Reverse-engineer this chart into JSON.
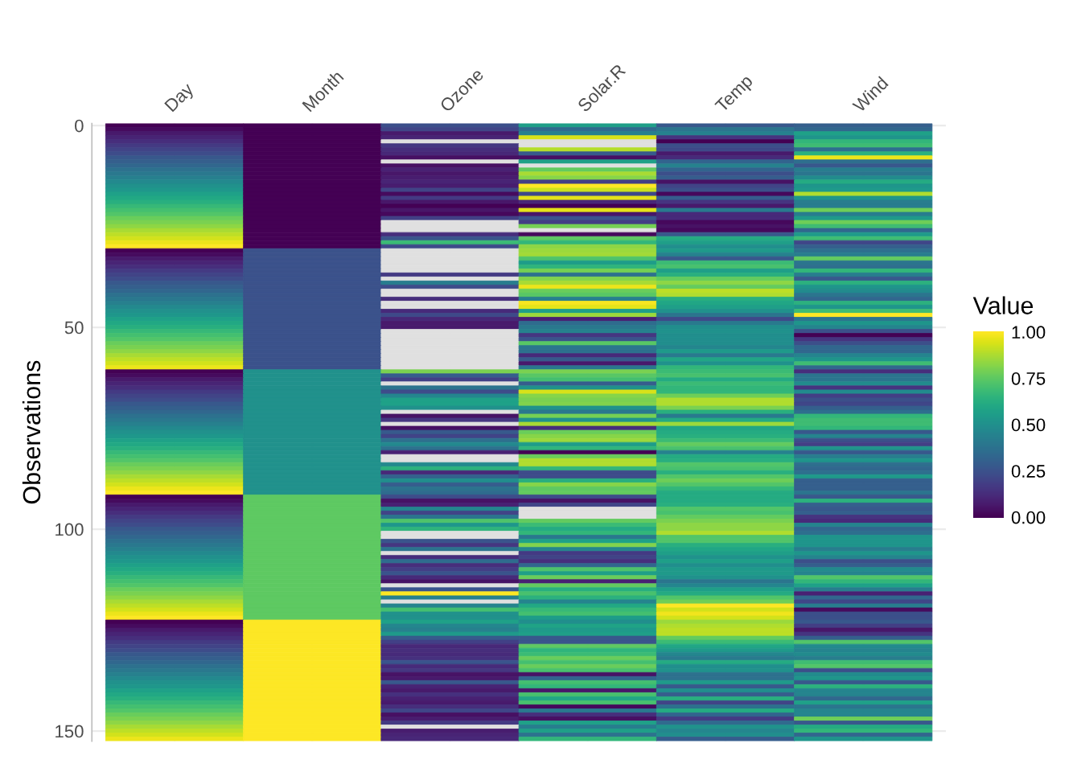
{
  "chart_data": {
    "type": "heatmap",
    "categories": [
      "Day",
      "Month",
      "Ozone",
      "Solar.R",
      "Temp",
      "Wind"
    ],
    "ylabel": "Observations",
    "legend_title": "Value",
    "ylim": [
      152.5,
      -0.5
    ],
    "yticks": [
      0,
      50,
      100,
      150
    ],
    "clim": [
      0,
      1
    ],
    "cticks": [
      {
        "value": 0,
        "label": "0.00"
      },
      {
        "value": 0.25,
        "label": "0.25"
      },
      {
        "value": 0.5,
        "label": "0.50"
      },
      {
        "value": 0.75,
        "label": "0.75"
      },
      {
        "value": 1,
        "label": "1.00"
      }
    ],
    "grid": true,
    "cells": [
      [
        0,
        0,
        0.24,
        0.56,
        0.27,
        0.3
      ],
      [
        0.03,
        0,
        0.21,
        0.34,
        0.39,
        0.33
      ],
      [
        0.07,
        0,
        0.07,
        0.43,
        0.44,
        0.57
      ],
      [
        0.1,
        0,
        0.1,
        0.94,
        0.15,
        0.52
      ],
      [
        0.13,
        0,
        null,
        null,
        0,
        0.66
      ],
      [
        0.17,
        0,
        0.16,
        null,
        0.24,
        0.69
      ],
      [
        0.2,
        0,
        0.13,
        0.89,
        0.22,
        0.36
      ],
      [
        0.23,
        0,
        0.11,
        0.28,
        0.07,
        0.64
      ],
      [
        0.27,
        0,
        0.04,
        0.04,
        0.12,
        0.97
      ],
      [
        0.3,
        0,
        null,
        0.57,
        0.32,
        0.36
      ],
      [
        0.33,
        0,
        0.04,
        null,
        0.44,
        0.27
      ],
      [
        0.37,
        0,
        0.09,
        0.76,
        0.32,
        0.42
      ],
      [
        0.4,
        0,
        0.06,
        0.87,
        0.24,
        0.39
      ],
      [
        0.43,
        0,
        0.08,
        0.82,
        0.29,
        0.48
      ],
      [
        0.47,
        0,
        0.1,
        0.18,
        0.05,
        0.61
      ],
      [
        0.5,
        0,
        0.08,
        1,
        0.2,
        0.52
      ],
      [
        0.53,
        0,
        0.2,
        0.92,
        0.24,
        0.54
      ],
      [
        0.57,
        0,
        0.03,
        0.22,
        0.02,
        0.88
      ],
      [
        0.6,
        0,
        0.17,
        0.96,
        0.29,
        0.52
      ],
      [
        0.63,
        0,
        0.06,
        0.11,
        0.15,
        0.42
      ],
      [
        0.67,
        0,
        0,
        0,
        0.07,
        0.42
      ],
      [
        0.7,
        0,
        0.06,
        0.96,
        0.41,
        0.78
      ],
      [
        0.73,
        0,
        0.02,
        0.06,
        0.12,
        0.42
      ],
      [
        0.77,
        0,
        0.19,
        0.26,
        0.12,
        0.54
      ],
      [
        0.8,
        0,
        null,
        0.18,
        0.02,
        0.78
      ],
      [
        0.83,
        0,
        null,
        0.79,
        0.05,
        0.69
      ],
      [
        0.87,
        0,
        null,
        null,
        0.02,
        0.33
      ],
      [
        0.9,
        0,
        0.13,
        0.02,
        0.27,
        0.54
      ],
      [
        0.93,
        0,
        0.26,
        0.75,
        0.61,
        0.69
      ],
      [
        0.97,
        0,
        0.68,
        0.66,
        0.56,
        0.21
      ],
      [
        1,
        0,
        0.22,
        0.83,
        0.49,
        0.3
      ],
      [
        0,
        0.25,
        null,
        0.85,
        0.54,
        0.36
      ],
      [
        0.03,
        0.25,
        null,
        0.86,
        0.44,
        0.42
      ],
      [
        0.07,
        0.25,
        null,
        0.72,
        0.27,
        0.76
      ],
      [
        0.1,
        0.25,
        null,
        0.55,
        0.68,
        0.39
      ],
      [
        0.13,
        0.25,
        null,
        0.65,
        0.71,
        0.36
      ],
      [
        0.17,
        0.25,
        null,
        0.79,
        0.56,
        0.66
      ],
      [
        0.2,
        0.25,
        0.17,
        0.37,
        0.63,
        0.42
      ],
      [
        0.23,
        0.25,
        null,
        0.81,
        0.76,
        0.27
      ],
      [
        0.27,
        0.25,
        0.42,
        0.87,
        0.83,
        0.64
      ],
      [
        0.3,
        0.25,
        0.23,
        0.97,
        0.76,
        0.52
      ],
      [
        0.33,
        0.25,
        null,
        0.77,
        0.9,
        0.48
      ],
      [
        0.37,
        0.25,
        null,
        0.74,
        0.88,
        0.39
      ],
      [
        0.4,
        0.25,
        0.13,
        0.43,
        0.63,
        0.33
      ],
      [
        0.43,
        0.25,
        null,
        0.99,
        0.59,
        0.64
      ],
      [
        0.47,
        0.25,
        null,
        0.96,
        0.56,
        0.52
      ],
      [
        0.5,
        0.25,
        0.12,
        0.56,
        0.51,
        0.69
      ],
      [
        0.53,
        0.25,
        0.22,
        0.85,
        0.39,
        1
      ],
      [
        0.57,
        0.25,
        0.11,
        0.09,
        0.22,
        0.39
      ],
      [
        0.6,
        0.25,
        0.07,
        0.35,
        0.41,
        0.52
      ],
      [
        0.63,
        0.25,
        0.07,
        0.4,
        0.49,
        0.45
      ],
      [
        0.67,
        0.25,
        null,
        0.44,
        0.51,
        0.24
      ],
      [
        0.7,
        0.25,
        null,
        0.16,
        0.49,
        0
      ],
      [
        0.73,
        0.25,
        null,
        0.26,
        0.49,
        0.15
      ],
      [
        0.77,
        0.25,
        null,
        0.74,
        0.49,
        0.24
      ],
      [
        0.8,
        0.25,
        null,
        0.39,
        0.46,
        0.33
      ],
      [
        0.83,
        0.25,
        null,
        0.37,
        0.54,
        0.33
      ],
      [
        0.87,
        0.25,
        null,
        0.12,
        0.41,
        0.45
      ],
      [
        0.9,
        0.25,
        null,
        0.28,
        0.59,
        0.52
      ],
      [
        0.93,
        0.25,
        null,
        0.07,
        0.51,
        0.69
      ],
      [
        0.97,
        0.25,
        null,
        0.4,
        0.66,
        0.33
      ],
      [
        0,
        0.5,
        0.8,
        0.8,
        0.68,
        0.13
      ],
      [
        0.03,
        0.5,
        0.29,
        0.74,
        0.71,
        0.39
      ],
      [
        0.07,
        0.5,
        0.19,
        0.7,
        0.61,
        0.39
      ],
      [
        0.1,
        0.5,
        null,
        0.29,
        0.68,
        0.48
      ],
      [
        0.13,
        0.5,
        0.38,
        0.51,
        0.66,
        0.15
      ],
      [
        0.17,
        0.5,
        0.23,
        0.94,
        0.66,
        0.48
      ],
      [
        0.2,
        0.5,
        0.46,
        0.82,
        0.78,
        0.18
      ],
      [
        0.23,
        0.5,
        0.57,
        0.8,
        0.88,
        0.24
      ],
      [
        0.27,
        0.5,
        0.57,
        0.81,
        0.88,
        0.21
      ],
      [
        0.3,
        0.5,
        0.5,
        0.51,
        0.8,
        0.3
      ],
      [
        0.33,
        0.5,
        null,
        0.4,
        0.63,
        0.36
      ],
      [
        0.37,
        0.5,
        0.05,
        0.79,
        0.41,
        0.66
      ],
      [
        0.4,
        0.5,
        0.16,
        0.51,
        0.61,
        0.69
      ],
      [
        0.43,
        0.5,
        null,
        0.87,
        0.85,
        0.69
      ],
      [
        0.47,
        0.5,
        0.04,
        0.13,
        0.59,
        0.66
      ],
      [
        0.5,
        0.5,
        0.28,
        0.77,
        0.61,
        0.27
      ],
      [
        0.53,
        0.5,
        0.2,
        0.82,
        0.63,
        0.45
      ],
      [
        0.57,
        0.5,
        0.36,
        0.85,
        0.68,
        0.24
      ],
      [
        0.6,
        0.5,
        0.47,
        0.55,
        0.76,
        0.18
      ],
      [
        0.63,
        0.5,
        0.37,
        0.65,
        0.71,
        0.52
      ],
      [
        0.67,
        0.5,
        0.09,
        0,
        0.44,
        0.27
      ],
      [
        0.7,
        0.5,
        null,
        0.77,
        0.61,
        0.42
      ],
      [
        0.73,
        0.5,
        null,
        0.88,
        0.63,
        0.52
      ],
      [
        0.77,
        0.5,
        0.47,
        0.88,
        0.73,
        0.36
      ],
      [
        0.8,
        0.5,
        0.64,
        0.66,
        0.71,
        0.33
      ],
      [
        0.83,
        0.5,
        0.11,
        0.23,
        0.63,
        0.36
      ],
      [
        0.87,
        0.5,
        0.31,
        0.23,
        0.73,
        0.54
      ],
      [
        0.9,
        0.5,
        0.49,
        0.63,
        0.78,
        0.3
      ],
      [
        0.93,
        0.5,
        0.29,
        0.82,
        0.73,
        0.3
      ],
      [
        0.97,
        0.5,
        0.38,
        0.75,
        0.66,
        0.3
      ],
      [
        1,
        0.5,
        0.35,
        0.76,
        0.61,
        0.39
      ],
      [
        0,
        0.75,
        0.23,
        0.23,
        0.61,
        0.27
      ],
      [
        0.03,
        0.75,
        0.05,
        0.05,
        0.61,
        0.64
      ],
      [
        0.07,
        0.75,
        0.09,
        0.21,
        0.63,
        0.3
      ],
      [
        0.1,
        0.75,
        0.46,
        null,
        0.73,
        0.27
      ],
      [
        0.13,
        0.75,
        0.2,
        null,
        0.71,
        0.3
      ],
      [
        0.17,
        0.75,
        0.39,
        null,
        0.76,
        0.15
      ],
      [
        0.2,
        0.75,
        0.72,
        0.76,
        0.8,
        0.12
      ],
      [
        0.23,
        0.75,
        0.53,
        0.68,
        0.83,
        0.45
      ],
      [
        0.27,
        0.75,
        0.65,
        0.61,
        0.83,
        0.33
      ],
      [
        0.3,
        0.75,
        null,
        0.66,
        0.88,
        0.36
      ],
      [
        0.33,
        0.75,
        null,
        0.4,
        0.73,
        0.52
      ],
      [
        0.37,
        0.75,
        0.26,
        0.57,
        0.73,
        0.52
      ],
      [
        0.4,
        0.75,
        0.16,
        0.81,
        0.63,
        0.52
      ],
      [
        0.43,
        0.75,
        0.38,
        0.46,
        0.59,
        0.42
      ],
      [
        0.47,
        0.75,
        null,
        0.17,
        0.56,
        0.52
      ],
      [
        0.5,
        0.75,
        0.13,
        0.2,
        0.51,
        0.45
      ],
      [
        0.53,
        0.75,
        0.35,
        0.13,
        0.56,
        0.24
      ],
      [
        0.57,
        0.75,
        0.13,
        0.33,
        0.49,
        0.3
      ],
      [
        0.6,
        0.75,
        0.18,
        0.72,
        0.54,
        0.48
      ],
      [
        0.63,
        0.75,
        0.26,
        0.56,
        0.54,
        0.45
      ],
      [
        0.67,
        0.75,
        0.12,
        0.77,
        0.51,
        0.73
      ],
      [
        0.7,
        0.75,
        0.05,
        0.09,
        0.39,
        0.66
      ],
      [
        0.73,
        0.75,
        null,
        0.76,
        0.46,
        0.57
      ],
      [
        0.77,
        0.75,
        0.26,
        0.63,
        0.56,
        0.42
      ],
      [
        0.8,
        0.75,
        1,
        0.71,
        0.61,
        0.09
      ],
      [
        0.83,
        0.75,
        0.43,
        0.64,
        0.73,
        0.33
      ],
      [
        0.87,
        0.75,
        null,
        0.45,
        0.78,
        0.21
      ],
      [
        0.9,
        0.75,
        0.45,
        0.6,
        1,
        0.42
      ],
      [
        0.93,
        0.75,
        0.7,
        0.67,
        0.93,
        0.03
      ],
      [
        0.97,
        0.75,
        0.5,
        0.7,
        0.98,
        0.24
      ],
      [
        1,
        0.75,
        0.5,
        0.55,
        0.93,
        0.24
      ],
      [
        0,
        1,
        0.57,
        0.49,
        0.85,
        0.27
      ],
      [
        0.03,
        1,
        0.46,
        0.58,
        0.88,
        0.18
      ],
      [
        0.07,
        1,
        0.43,
        0.54,
        0.9,
        0.06
      ],
      [
        0.1,
        1,
        0.54,
        0.56,
        0.9,
        0.15
      ],
      [
        0.13,
        1,
        0.28,
        0.27,
        0.76,
        0.3
      ],
      [
        0.17,
        1,
        0.19,
        0.26,
        0.68,
        0.73
      ],
      [
        0.2,
        1,
        0.11,
        0.75,
        0.59,
        0.48
      ],
      [
        0.23,
        1,
        0.13,
        0.65,
        0.54,
        0.45
      ],
      [
        0.27,
        1,
        0.12,
        0.68,
        0.46,
        0.48
      ],
      [
        0.3,
        1,
        0.14,
        0.77,
        0.41,
        0.42
      ],
      [
        0.33,
        1,
        0.26,
        0.7,
        0.61,
        0.69
      ],
      [
        0.37,
        1,
        0.12,
        0.77,
        0.49,
        0.73
      ],
      [
        0.4,
        1,
        0.16,
        0.71,
        0.51,
        0.24
      ],
      [
        0.43,
        1,
        0.05,
        0.05,
        0.37,
        0.48
      ],
      [
        0.47,
        1,
        0.07,
        0.32,
        0.37,
        0.52
      ],
      [
        0.5,
        1,
        0.27,
        0.7,
        0.54,
        0.27
      ],
      [
        0.53,
        1,
        0.1,
        0.66,
        0.27,
        0.64
      ],
      [
        0.57,
        1,
        0.07,
        0.06,
        0.49,
        0.45
      ],
      [
        0.6,
        1,
        0.14,
        0.71,
        0.29,
        0.45
      ],
      [
        0.63,
        1,
        0.09,
        0.59,
        0.63,
        0.33
      ],
      [
        0.67,
        1,
        0.07,
        0.71,
        0.2,
        0.57
      ],
      [
        0.7,
        1,
        0.13,
        0.02,
        0.37,
        0.39
      ],
      [
        0.73,
        1,
        0.21,
        0.4,
        0.61,
        0.45
      ],
      [
        0.77,
        1,
        0.04,
        0.13,
        0.32,
        0.45
      ],
      [
        0.8,
        1,
        0.08,
        0.04,
        0.17,
        0.78
      ],
      [
        0.83,
        1,
        0.17,
        0.57,
        0.34,
        0.27
      ],
      [
        0.87,
        1,
        null,
        0.42,
        0.51,
        0.61
      ],
      [
        0.9,
        1,
        0.08,
        0.56,
        0.46,
        0.66
      ],
      [
        0.93,
        1,
        0.1,
        0.38,
        0.49,
        0.33
      ],
      [
        0.97,
        1,
        0.11,
        0.66,
        0.29,
        0.52
      ]
    ]
  }
}
